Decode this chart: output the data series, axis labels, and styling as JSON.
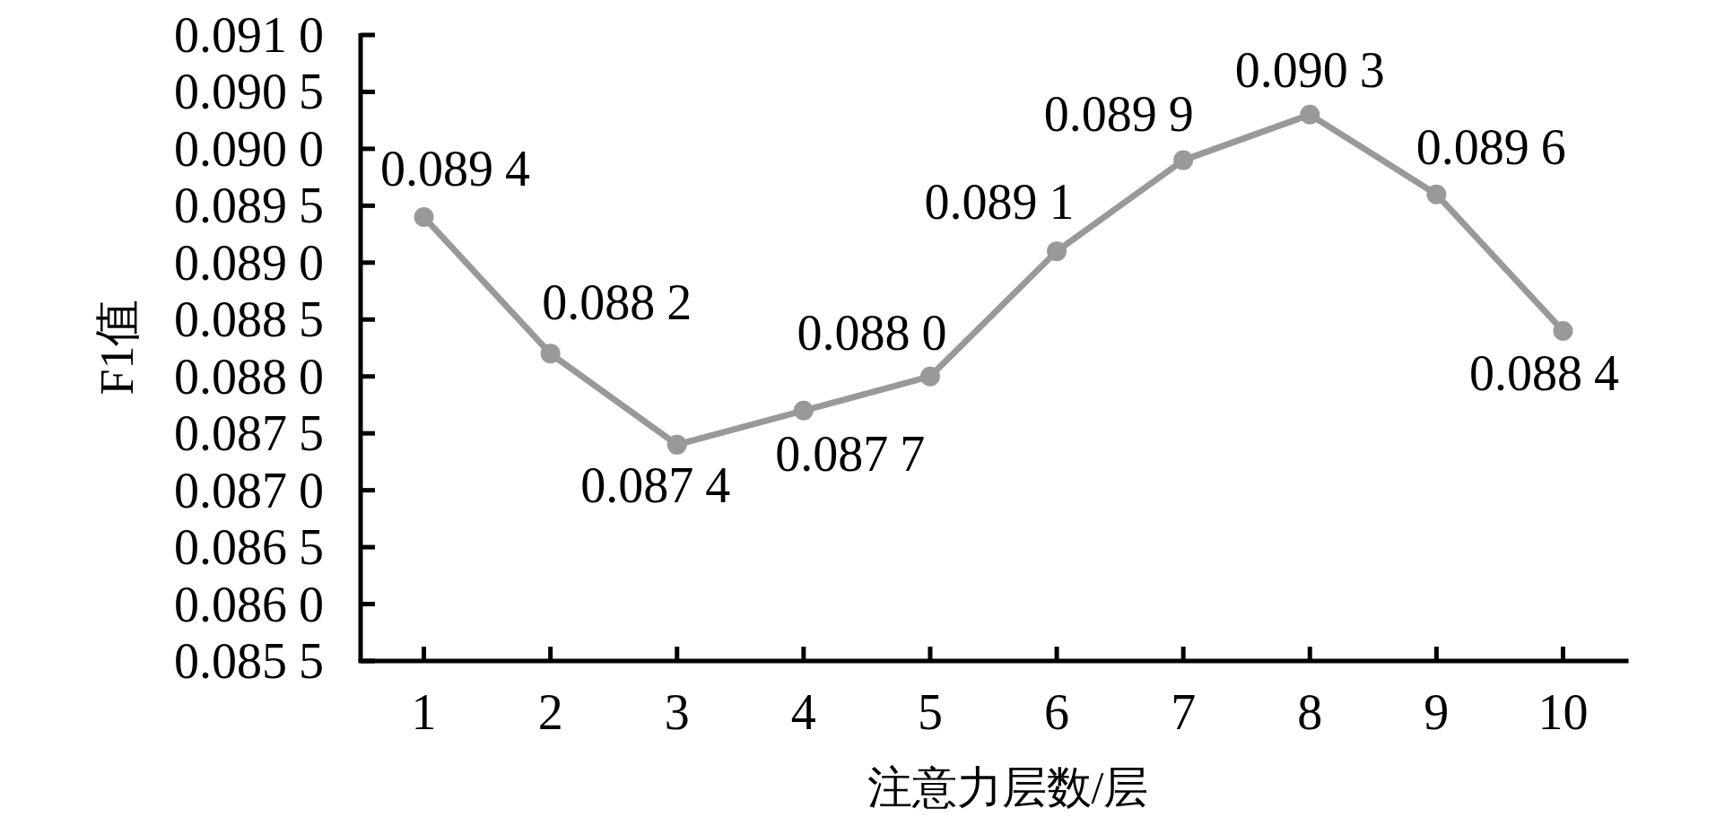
{
  "chart_data": {
    "type": "line",
    "xlabel": "注意力层数/层",
    "ylabel": "F1值",
    "categories": [
      "1",
      "2",
      "3",
      "4",
      "5",
      "6",
      "7",
      "8",
      "9",
      "10"
    ],
    "values": [
      0.0894,
      0.0882,
      0.0874,
      0.0877,
      0.088,
      0.0891,
      0.0899,
      0.0903,
      0.0896,
      0.0884
    ],
    "value_labels": [
      "0.0894",
      "0.0882",
      "0.0874",
      "0.0877",
      "0.0880",
      "0.0891",
      "0.0899",
      "0.0903",
      "0.0896",
      "0.0884"
    ],
    "color": "#999999",
    "marker": "circle",
    "ylim": [
      0.0855,
      0.091
    ],
    "yticks": [
      {
        "value": 0.0855,
        "label": "0.0855"
      },
      {
        "value": 0.086,
        "label": "0.0860"
      },
      {
        "value": 0.0865,
        "label": "0.0865"
      },
      {
        "value": 0.087,
        "label": "0.0870"
      },
      {
        "value": 0.0875,
        "label": "0.0875"
      },
      {
        "value": 0.088,
        "label": "0.0880"
      },
      {
        "value": 0.0885,
        "label": "0.0885"
      },
      {
        "value": 0.089,
        "label": "0.0890"
      },
      {
        "value": 0.0895,
        "label": "0.0895"
      },
      {
        "value": 0.09,
        "label": "0.0900"
      },
      {
        "value": 0.0905,
        "label": "0.0905"
      },
      {
        "value": 0.091,
        "label": "0.0910"
      }
    ]
  }
}
